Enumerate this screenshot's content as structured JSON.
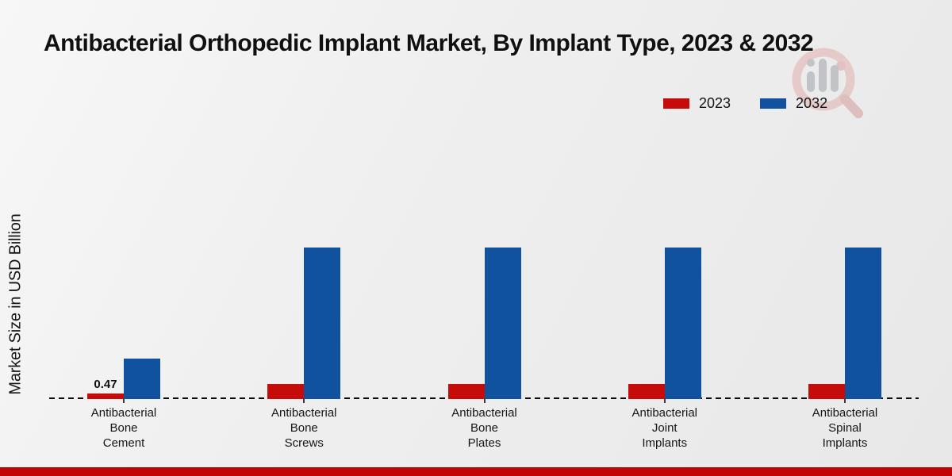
{
  "title": "Antibacterial Orthopedic Implant Market, By Implant Type, 2023 & 2032",
  "y_axis_label": "Market Size in USD Billion",
  "legend": {
    "items": [
      {
        "label": "2023",
        "color": "#c60b0b"
      },
      {
        "label": "2032",
        "color": "#11529e"
      }
    ]
  },
  "footer": {
    "accent_color": "#c30404"
  },
  "watermark": {
    "icon": "magnifier-bar-chart-logo"
  },
  "chart_data": {
    "type": "bar",
    "title": "Antibacterial Orthopedic Implant Market, By Implant Type, 2023 & 2032",
    "xlabel": "",
    "ylabel": "Market Size in USD Billion",
    "categories": [
      "Antibacterial\nBone\nCement",
      "Antibacterial\nBone\nScrews",
      "Antibacterial\nBone\nPlates",
      "Antibacterial\nJoint\nImplants",
      "Antibacterial\nSpinal\nImplants"
    ],
    "series": [
      {
        "name": "2023",
        "color": "#c60b0b",
        "values": [
          0.47,
          1.28,
          1.28,
          1.28,
          1.28
        ],
        "labels": [
          "0.47",
          "",
          "",
          "",
          ""
        ]
      },
      {
        "name": "2032",
        "color": "#11529e",
        "values": [
          3.45,
          12.85,
          12.85,
          12.85,
          12.85
        ],
        "labels": [
          "",
          "",
          "",
          "",
          ""
        ]
      }
    ],
    "ylim": [
      0,
      14
    ],
    "grid": false,
    "axis_style": "dashed-baseline-only",
    "legend_position": "top-right"
  }
}
